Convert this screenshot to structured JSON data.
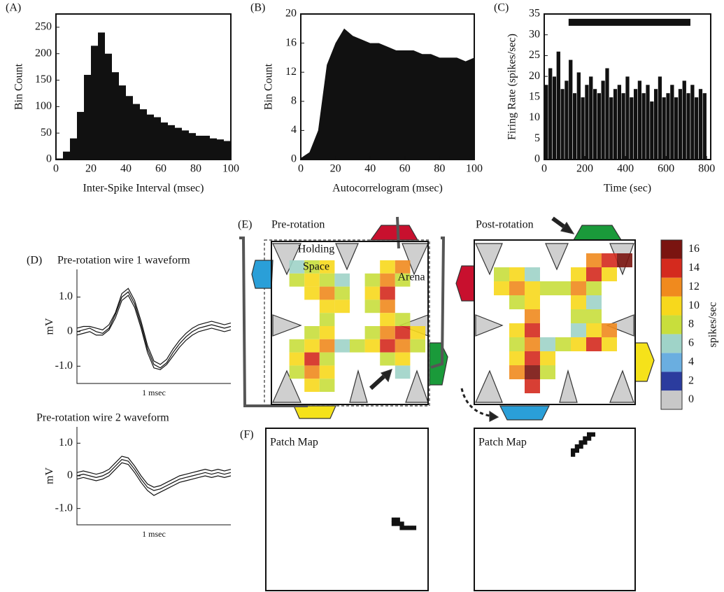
{
  "chart_data": [
    {
      "type": "histogram",
      "panel": "(A)",
      "x_label": "Inter-Spike Interval (msec)",
      "y_label": "Bin Count",
      "color": "#111111",
      "bins": [
        0,
        4,
        8,
        12,
        16,
        20,
        24,
        28,
        32,
        36,
        40,
        44,
        48,
        52,
        56,
        60,
        64,
        68,
        72,
        76,
        80,
        84,
        88,
        92,
        96,
        100
      ],
      "values": [
        2,
        15,
        40,
        90,
        160,
        215,
        240,
        200,
        165,
        140,
        120,
        105,
        95,
        85,
        80,
        70,
        65,
        60,
        55,
        50,
        45,
        45,
        40,
        38,
        35
      ],
      "xlim": [
        0,
        100
      ],
      "xticks": [
        0,
        20,
        40,
        60,
        80,
        100
      ],
      "ylim": [
        0,
        275
      ],
      "yticks": [
        0,
        50,
        100,
        150,
        200,
        250
      ]
    },
    {
      "type": "area",
      "panel": "(B)",
      "x_label": "Autocorrelogram (msec)",
      "y_label": "Bin Count",
      "color": "#111111",
      "x": [
        0,
        5,
        10,
        15,
        20,
        25,
        30,
        35,
        40,
        45,
        50,
        55,
        60,
        65,
        70,
        75,
        80,
        85,
        90,
        95,
        100
      ],
      "values": [
        0.2,
        1,
        4,
        13,
        16,
        18,
        17,
        16.5,
        16,
        16,
        15.5,
        15,
        15,
        15,
        14.5,
        14.5,
        14,
        14,
        14,
        13.5,
        14
      ],
      "xlim": [
        0,
        100
      ],
      "xticks": [
        0,
        20,
        40,
        60,
        80,
        100
      ],
      "ylim": [
        0,
        20
      ],
      "yticks": [
        0,
        4,
        8,
        12,
        16,
        20
      ]
    },
    {
      "type": "bar",
      "panel": "(C)",
      "x_label": "Time (sec)",
      "y_label": "Firing Rate (spikes/sec)",
      "color": "#111111",
      "x": [
        0,
        20,
        40,
        60,
        80,
        100,
        120,
        140,
        160,
        180,
        200,
        220,
        240,
        260,
        280,
        300,
        320,
        340,
        360,
        380,
        400,
        420,
        440,
        460,
        480,
        500,
        520,
        540,
        560,
        580,
        600,
        620,
        640,
        660,
        680,
        700,
        720,
        740,
        760,
        780
      ],
      "values": [
        18,
        22,
        20,
        26,
        17,
        19,
        24,
        16,
        21,
        15,
        18,
        20,
        17,
        16,
        19,
        22,
        15,
        17,
        18,
        16,
        20,
        15,
        17,
        19,
        16,
        18,
        14,
        17,
        20,
        15,
        16,
        18,
        15,
        17,
        19,
        16,
        18,
        15,
        17,
        16
      ],
      "span": [
        120,
        720
      ],
      "span_y": 33,
      "xlim": [
        0,
        820
      ],
      "xticks": [
        0,
        200,
        400,
        600,
        800
      ],
      "ylim": [
        0,
        35
      ],
      "yticks": [
        0,
        5,
        10,
        15,
        20,
        25,
        30,
        35
      ]
    },
    {
      "type": "line",
      "panel": "(D)",
      "title": "Pre-rotation wire 1 waveform",
      "y_label": "mV",
      "x_label": "1 msec",
      "series": [
        {
          "color": "#111111",
          "values": [
            0.0,
            0.05,
            0.1,
            0.0,
            -0.05,
            0.1,
            0.5,
            1.0,
            1.15,
            0.8,
            0.2,
            -0.5,
            -0.95,
            -1.05,
            -0.9,
            -0.6,
            -0.35,
            -0.15,
            0,
            0.1,
            0.15,
            0.2,
            0.15,
            0.1,
            0.15
          ]
        },
        {
          "color": "#111111",
          "values": [
            -0.1,
            -0.05,
            0.0,
            -0.1,
            -0.1,
            0.05,
            0.4,
            0.9,
            1.05,
            0.7,
            0.1,
            -0.6,
            -1.05,
            -1.1,
            -0.95,
            -0.7,
            -0.45,
            -0.25,
            -0.1,
            0.0,
            0.05,
            0.1,
            0.05,
            0.0,
            0.05
          ]
        },
        {
          "color": "#111111",
          "values": [
            0.1,
            0.15,
            0.15,
            0.1,
            0.05,
            0.2,
            0.55,
            1.1,
            1.25,
            0.9,
            0.3,
            -0.4,
            -0.85,
            -0.95,
            -0.8,
            -0.5,
            -0.25,
            -0.05,
            0.1,
            0.2,
            0.25,
            0.3,
            0.25,
            0.2,
            0.25
          ]
        }
      ],
      "ylim": [
        -1.5,
        1.8
      ],
      "yticks": [
        {
          "value": 1,
          "label": "1.0"
        },
        0,
        {
          "value": -1,
          "label": "-1.0"
        }
      ]
    },
    {
      "type": "line",
      "title": "Pre-rotation wire 2 waveform",
      "y_label": "mV",
      "x_label": "1 msec",
      "series": [
        {
          "color": "#111111",
          "values": [
            0,
            0.05,
            0,
            -0.05,
            0,
            0.1,
            0.3,
            0.5,
            0.45,
            0.2,
            -0.1,
            -0.35,
            -0.45,
            -0.4,
            -0.3,
            -0.2,
            -0.1,
            -0.05,
            0,
            0.05,
            0.1,
            0.05,
            0.1,
            0.05,
            0.1
          ]
        },
        {
          "color": "#111111",
          "values": [
            -0.1,
            -0.05,
            -0.1,
            -0.15,
            -0.1,
            0.0,
            0.2,
            0.4,
            0.35,
            0.1,
            -0.2,
            -0.45,
            -0.6,
            -0.5,
            -0.4,
            -0.3,
            -0.2,
            -0.15,
            -0.1,
            -0.05,
            0,
            -0.05,
            0,
            -0.05,
            0
          ]
        },
        {
          "color": "#111111",
          "values": [
            0.1,
            0.15,
            0.1,
            0.05,
            0.1,
            0.2,
            0.4,
            0.6,
            0.55,
            0.3,
            0.0,
            -0.25,
            -0.35,
            -0.3,
            -0.2,
            -0.1,
            0,
            0.05,
            0.1,
            0.15,
            0.2,
            0.15,
            0.2,
            0.15,
            0.2
          ]
        }
      ],
      "ylim": [
        -1.5,
        1.5
      ],
      "yticks": [
        {
          "value": 1,
          "label": "1.0"
        },
        0,
        {
          "value": -1,
          "label": "-1.0"
        }
      ]
    },
    {
      "type": "heatmap",
      "panel": "(E)",
      "title": "Pre-rotation",
      "annotations": [
        "Holding",
        "Space",
        "Arena"
      ],
      "z": [
        [
          null,
          6,
          8,
          10,
          null,
          null,
          null,
          10,
          12,
          null
        ],
        [
          null,
          8,
          10,
          8,
          6,
          null,
          8,
          12,
          8,
          null
        ],
        [
          null,
          null,
          10,
          12,
          8,
          null,
          10,
          14,
          null,
          null
        ],
        [
          null,
          null,
          null,
          10,
          10,
          null,
          8,
          12,
          null,
          null
        ],
        [
          null,
          null,
          null,
          8,
          null,
          null,
          null,
          10,
          8,
          null
        ],
        [
          null,
          null,
          8,
          10,
          null,
          null,
          8,
          12,
          14,
          10
        ],
        [
          null,
          8,
          10,
          12,
          6,
          8,
          10,
          14,
          12,
          8
        ],
        [
          null,
          10,
          14,
          8,
          null,
          null,
          null,
          8,
          10,
          null
        ],
        [
          null,
          8,
          12,
          10,
          null,
          null,
          null,
          null,
          6,
          null
        ],
        [
          null,
          null,
          10,
          8,
          null,
          null,
          null,
          null,
          null,
          null
        ]
      ]
    },
    {
      "type": "heatmap",
      "title": "Post-rotation",
      "z": [
        [
          null,
          null,
          null,
          null,
          null,
          null,
          null,
          12,
          14,
          16
        ],
        [
          null,
          8,
          10,
          6,
          null,
          null,
          10,
          14,
          10,
          null
        ],
        [
          null,
          10,
          12,
          10,
          8,
          8,
          12,
          8,
          null,
          null
        ],
        [
          null,
          null,
          8,
          10,
          null,
          null,
          10,
          6,
          null,
          null
        ],
        [
          null,
          null,
          null,
          12,
          null,
          null,
          8,
          8,
          null,
          null
        ],
        [
          null,
          null,
          10,
          14,
          null,
          null,
          6,
          10,
          12,
          null
        ],
        [
          null,
          null,
          8,
          12,
          6,
          8,
          10,
          14,
          10,
          null
        ],
        [
          null,
          null,
          10,
          14,
          10,
          null,
          null,
          null,
          null,
          null
        ],
        [
          null,
          null,
          12,
          16,
          8,
          null,
          null,
          null,
          null,
          null
        ],
        [
          null,
          null,
          null,
          14,
          null,
          null,
          null,
          null,
          null,
          null
        ]
      ]
    },
    {
      "type": "patch",
      "panel": "(F)",
      "title": "Patch Map",
      "grid_size": 40,
      "cells": [
        [
          31,
          22
        ],
        [
          32,
          22
        ],
        [
          31,
          23
        ],
        [
          32,
          23
        ],
        [
          33,
          23
        ],
        [
          33,
          24
        ],
        [
          34,
          24
        ],
        [
          35,
          24
        ],
        [
          36,
          24
        ]
      ]
    },
    {
      "type": "patch",
      "title": "Patch Map",
      "grid_size": 40,
      "cells": [
        [
          28,
          1
        ],
        [
          29,
          1
        ],
        [
          27,
          2
        ],
        [
          28,
          2
        ],
        [
          26,
          3
        ],
        [
          27,
          3
        ],
        [
          25,
          4
        ],
        [
          26,
          4
        ],
        [
          24,
          5
        ],
        [
          25,
          5
        ],
        [
          24,
          6
        ]
      ]
    },
    {
      "type": "colorbar",
      "label": "spikes/sec",
      "ticks": [
        0,
        2,
        4,
        6,
        8,
        10,
        12,
        14,
        16
      ],
      "colors": [
        "#c8c8c8",
        "#2b3c9e",
        "#6aaee0",
        "#9fd3c8",
        "#c8de3c",
        "#f7d81c",
        "#f08a1e",
        "#d42a1e",
        "#7a1410"
      ]
    }
  ]
}
